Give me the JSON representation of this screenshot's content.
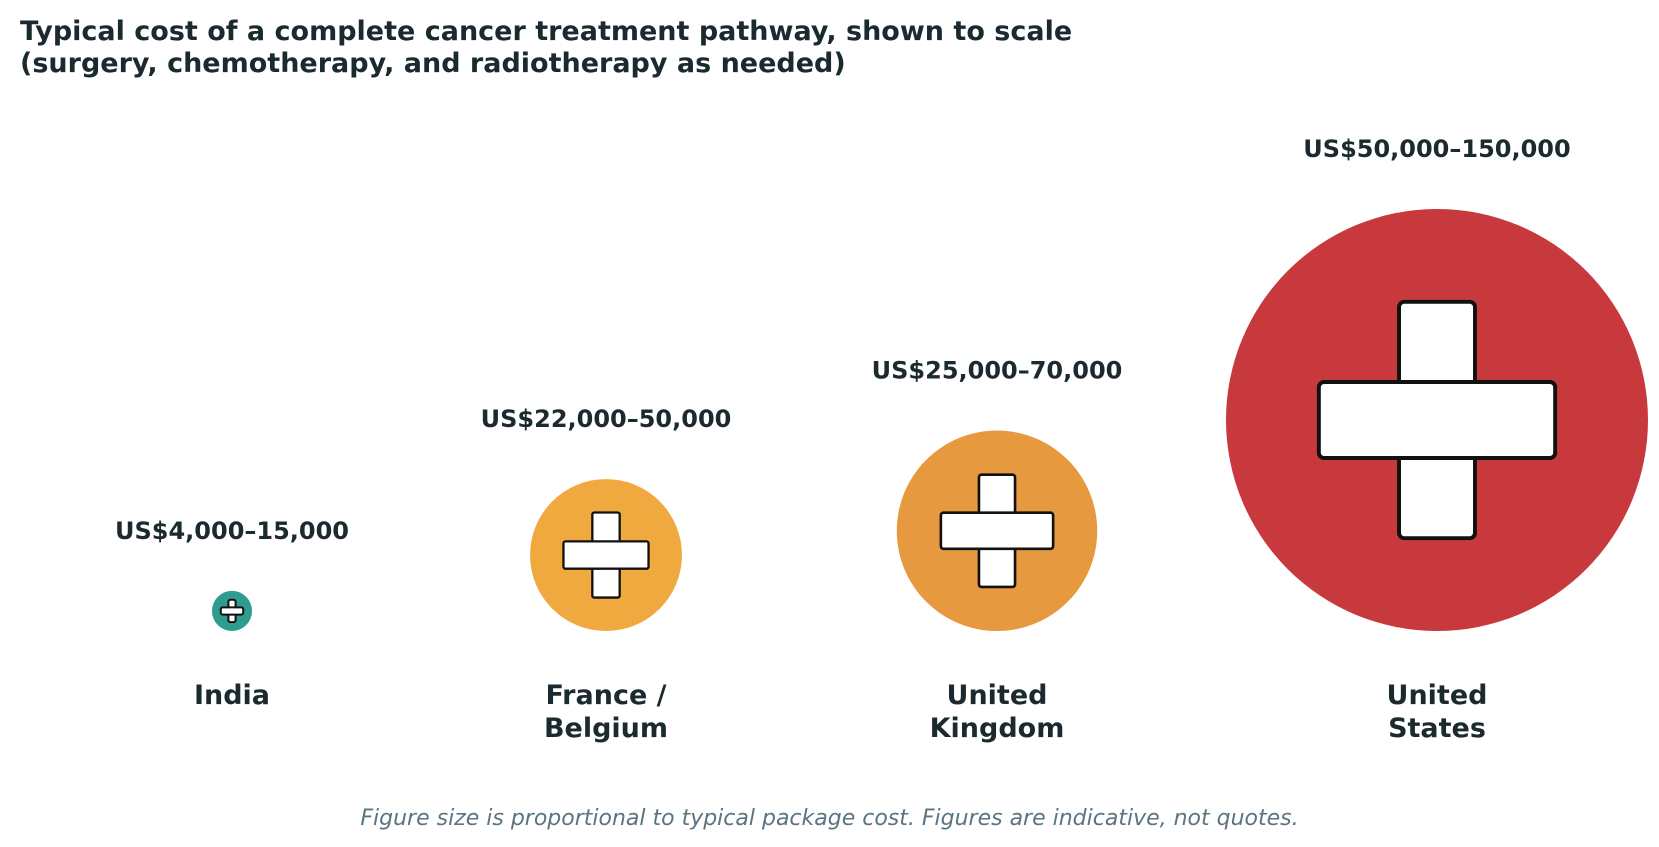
{
  "chart_data": {
    "type": "bubble",
    "title": "Typical cost of a complete cancer treatment pathway, shown to scale\n(surgery, chemotherapy, and radiotherapy as needed)",
    "categories": [
      "India",
      "France /\nBelgium",
      "United\nKingdom",
      "United\nStates"
    ],
    "value_labels": [
      "US$4,000–15,000",
      "US$22,000–50,000",
      "US$25,000–70,000",
      "US$50,000–150,000"
    ],
    "values": [
      {
        "low": 4000,
        "high": 15000
      },
      {
        "low": 22000,
        "high": 50000
      },
      {
        "low": 25000,
        "high": 70000
      },
      {
        "low": 50000,
        "high": 150000
      }
    ],
    "size_encoding": "circle size proportional to typical package cost",
    "colors": [
      "#2e9c8e",
      "#f0a93e",
      "#e6993e",
      "#c8393e"
    ],
    "icon": "medical-cross-icon",
    "footnote": "Figure size is proportional to typical package cost. Figures are indicative, not quotes."
  }
}
